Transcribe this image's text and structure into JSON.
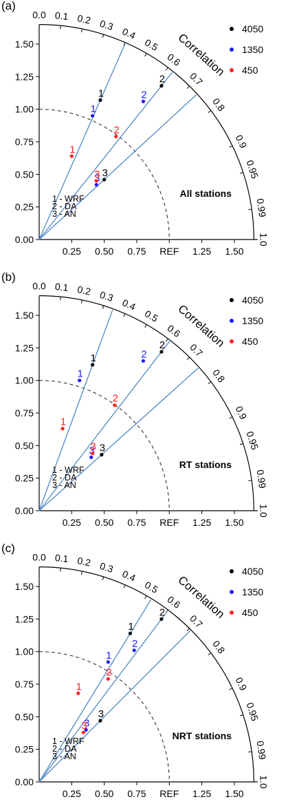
{
  "chart_data": [
    {
      "type": "taylor",
      "panel_label": "(a)",
      "title": "All stations",
      "r_label": "Correlation",
      "ref_label": "REF",
      "std_ticks": [
        "0.25",
        "0.50",
        "0.75",
        "1.00",
        "1.25",
        "1.50"
      ],
      "y_ticks": [
        "0.00",
        "0.25",
        "0.50",
        "0.75",
        "1.00",
        "1.25",
        "1.50"
      ],
      "corr_ticks": [
        "0.0",
        "0.1",
        "0.2",
        "0.3",
        "0.4",
        "0.5",
        "0.6",
        "0.7",
        "0.8",
        "0.9",
        "0.95",
        "0.99",
        "1.0"
      ],
      "model_key": [
        "1 - WRF",
        "2 - DA",
        "3 - AN"
      ],
      "series": [
        {
          "name": "4050",
          "color": "#000000",
          "points": [
            {
              "label": "1",
              "x": 0.47,
              "y": 1.07
            },
            {
              "label": "2",
              "x": 0.94,
              "y": 1.18
            },
            {
              "label": "3",
              "x": 0.5,
              "y": 0.46
            }
          ]
        },
        {
          "name": "1350",
          "color": "#1a1aff",
          "points": [
            {
              "label": "1",
              "x": 0.41,
              "y": 0.95
            },
            {
              "label": "2",
              "x": 0.8,
              "y": 1.06
            },
            {
              "label": "3",
              "x": 0.44,
              "y": 0.42
            }
          ]
        },
        {
          "name": "450",
          "color": "#ff2020",
          "points": [
            {
              "label": "1",
              "x": 0.25,
              "y": 0.64
            },
            {
              "label": "2",
              "x": 0.59,
              "y": 0.79
            },
            {
              "label": "3",
              "x": 0.44,
              "y": 0.45
            }
          ]
        }
      ]
    },
    {
      "type": "taylor",
      "panel_label": "(b)",
      "title": "RT stations",
      "r_label": "Correlation",
      "ref_label": "REF",
      "std_ticks": [
        "0.25",
        "0.50",
        "0.75",
        "1.00",
        "1.25",
        "1.50"
      ],
      "y_ticks": [
        "0.00",
        "0.25",
        "0.50",
        "0.75",
        "1.00",
        "1.25",
        "1.50"
      ],
      "corr_ticks": [
        "0.0",
        "0.1",
        "0.2",
        "0.3",
        "0.4",
        "0.5",
        "0.6",
        "0.7",
        "0.8",
        "0.9",
        "0.95",
        "0.99",
        "1.0"
      ],
      "model_key": [
        "1 - WRF",
        "2 - DA",
        "3 - AN"
      ],
      "series": [
        {
          "name": "4050",
          "color": "#000000",
          "points": [
            {
              "label": "1",
              "x": 0.41,
              "y": 1.12
            },
            {
              "label": "2",
              "x": 0.94,
              "y": 1.22
            },
            {
              "label": "3",
              "x": 0.48,
              "y": 0.43
            }
          ]
        },
        {
          "name": "1350",
          "color": "#1a1aff",
          "points": [
            {
              "label": "1",
              "x": 0.31,
              "y": 1.0
            },
            {
              "label": "2",
              "x": 0.8,
              "y": 1.15
            },
            {
              "label": "3",
              "x": 0.4,
              "y": 0.41
            }
          ]
        },
        {
          "name": "450",
          "color": "#ff2020",
          "points": [
            {
              "label": "1",
              "x": 0.18,
              "y": 0.63
            },
            {
              "label": "2",
              "x": 0.58,
              "y": 0.81
            },
            {
              "label": "3",
              "x": 0.41,
              "y": 0.44
            }
          ]
        }
      ]
    },
    {
      "type": "taylor",
      "panel_label": "(c)",
      "title": "NRT stations",
      "r_label": "Correlation",
      "ref_label": "REF",
      "std_ticks": [
        "0.25",
        "0.50",
        "0.75",
        "1.00",
        "1.25",
        "1.50"
      ],
      "y_ticks": [
        "0.00",
        "0.25",
        "0.50",
        "0.75",
        "1.00",
        "1.25",
        "1.50"
      ],
      "corr_ticks": [
        "0.0",
        "0.1",
        "0.2",
        "0.3",
        "0.4",
        "0.5",
        "0.6",
        "0.7",
        "0.8",
        "0.9",
        "0.95",
        "0.99",
        "1.0"
      ],
      "model_key": [
        "1 - WRF",
        "2 - DA",
        "3 - AN"
      ],
      "series": [
        {
          "name": "4050",
          "color": "#000000",
          "points": [
            {
              "label": "1",
              "x": 0.7,
              "y": 1.14
            },
            {
              "label": "2",
              "x": 0.94,
              "y": 1.25
            },
            {
              "label": "3",
              "x": 0.47,
              "y": 0.47
            }
          ]
        },
        {
          "name": "1350",
          "color": "#1a1aff",
          "points": [
            {
              "label": "1",
              "x": 0.53,
              "y": 0.92
            },
            {
              "label": "2",
              "x": 0.73,
              "y": 1.01
            },
            {
              "label": "3",
              "x": 0.36,
              "y": 0.4
            }
          ]
        },
        {
          "name": "450",
          "color": "#ff2020",
          "points": [
            {
              "label": "1",
              "x": 0.3,
              "y": 0.68
            },
            {
              "label": "2",
              "x": 0.53,
              "y": 0.79
            },
            {
              "label": "3",
              "x": 0.34,
              "y": 0.38
            }
          ]
        }
      ]
    }
  ]
}
